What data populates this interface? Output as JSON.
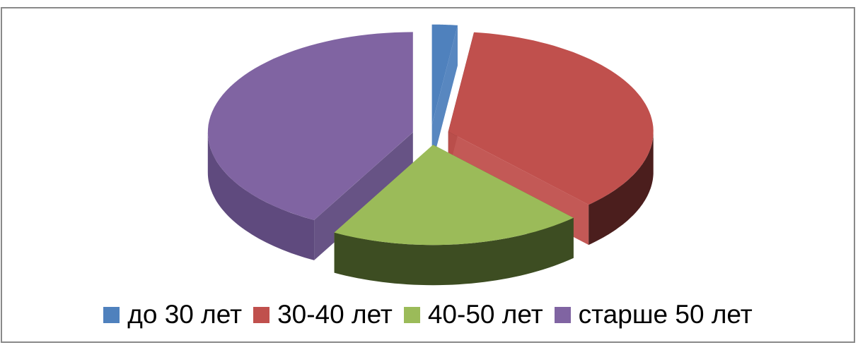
{
  "chart_data": {
    "type": "pie",
    "title": "",
    "style": "3d-exploded",
    "legend_position": "bottom",
    "categories": [
      "до 30 лет",
      "30-40 лет",
      "40-50 лет",
      "старше 50 лет"
    ],
    "values": [
      2,
      36,
      20,
      42
    ],
    "colors": [
      "#4f81bd",
      "#c0504d",
      "#9bbb59",
      "#8064a2"
    ],
    "side_colors": [
      "#2c4d75",
      "#4b1e1d",
      "#3d4d22",
      "#5f4a7e"
    ]
  }
}
